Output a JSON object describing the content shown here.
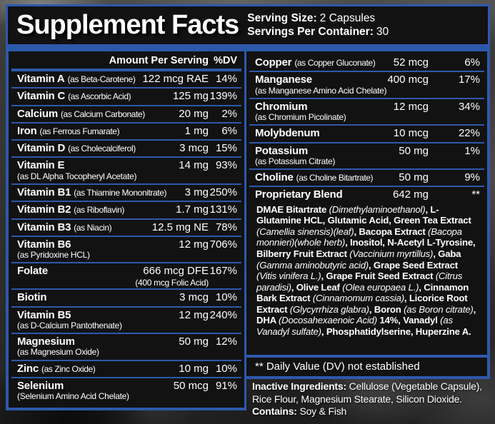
{
  "header": {
    "title": "Supplement Facts",
    "serving_size_label": "Serving Size:",
    "serving_size_value": "2 Capsules",
    "servings_label": "Servings Per Container:",
    "servings_value": "30"
  },
  "table": {
    "amount_header": "Amount Per Serving",
    "dv_header": "%DV",
    "left_rows": [
      {
        "name": "Vitamin A",
        "form": "(as Beta-Carotene)",
        "amount": "122 mcg RAE",
        "dv": "14%"
      },
      {
        "name": "Vitamin C",
        "form": "(as Ascorbic Acid)",
        "amount": "125 mg",
        "dv": "139%"
      },
      {
        "name": "Calcium",
        "form": "(as Calcium Carbonate)",
        "amount": "20 mg",
        "dv": "2%"
      },
      {
        "name": "Iron",
        "form": "(as Ferrous Fumarate)",
        "amount": "1 mg",
        "dv": "6%"
      },
      {
        "name": "Vitamin D",
        "form": "(as Cholecalciferol)",
        "amount": "3 mcg",
        "dv": "15%"
      },
      {
        "name": "Vitamin E",
        "sub": "(as DL Alpha Tocopheryl Acetate)",
        "amount": "14 mg",
        "dv": "93%"
      },
      {
        "name": "Vitamin B1",
        "form": "(as Thiamine Mononitrate)",
        "amount": "3 mg",
        "dv": "250%"
      },
      {
        "name": "Vitamin B2",
        "form": "(as Riboflavin)",
        "amount": "1.7 mg",
        "dv": "131%"
      },
      {
        "name": "Vitamin B3",
        "form": "(as Niacin)",
        "amount": "12.5 mg NE",
        "dv": "78%"
      },
      {
        "name": "Vitamin B6",
        "sub": "(as Pyridoxine HCL)",
        "amount": "12 mg",
        "dv": "706%"
      },
      {
        "name": "Folate",
        "amount": "666 mcg DFE",
        "amount_sub": "(400 mcg Folic Acid)",
        "dv": "167%"
      },
      {
        "name": "Biotin",
        "amount": "3 mcg",
        "dv": "10%"
      },
      {
        "name": "Vitamin B5",
        "sub": "(as D-Calcium Pantothenate)",
        "amount": "12 mg",
        "dv": "240%"
      },
      {
        "name": "Magnesium",
        "sub": "(as Magnesium Oxide)",
        "amount": "50 mg",
        "dv": "12%"
      },
      {
        "name": "Zinc",
        "form": "(as Zinc Oxide)",
        "amount": "10 mg",
        "dv": "10%"
      },
      {
        "name": "Selenium",
        "sub": "(Selenium Amino Acid Chelate)",
        "amount": "50 mcg",
        "dv": "91%"
      }
    ],
    "right_rows": [
      {
        "name": "Copper",
        "form": "(as Copper Gluconate)",
        "amount": "52 mcg",
        "dv": "6%"
      },
      {
        "name": "Manganese",
        "sub": "(as Manganese Amino Acid Chelate)",
        "amount": "400 mcg",
        "dv": "17%"
      },
      {
        "name": "Chromium",
        "sub": "(as Chromium Picolinate)",
        "amount": "12 mcg",
        "dv": "34%"
      },
      {
        "name": "Molybdenum",
        "amount": "10 mcg",
        "dv": "22%"
      },
      {
        "name": "Potassium",
        "sub": "(as Potassium Citrate)",
        "amount": "50 mg",
        "dv": "1%"
      },
      {
        "name": "Choline",
        "form": "(as Choline Bitartrate)",
        "amount": "50 mg",
        "dv": "9%"
      },
      {
        "name": "Proprietary Blend",
        "amount": "642 mg",
        "dv": "**"
      }
    ],
    "blend_description": [
      {
        "text": "DMAE Bitartrate ",
        "style": "b"
      },
      {
        "text": "(Dimethylaminoethanol)",
        "style": "i"
      },
      {
        "text": ", L-Glutamine HCL, Glutamic Acid, Green Tea Extract ",
        "style": "b"
      },
      {
        "text": "(Camellia sinensis)(leaf)",
        "style": "i"
      },
      {
        "text": ", Bacopa Extract ",
        "style": "b"
      },
      {
        "text": "(Bacopa monnieri)(whole herb)",
        "style": "i"
      },
      {
        "text": ", Inositol, N-Acetyl L-Tyrosine, Bilberry Fruit Extract ",
        "style": "b"
      },
      {
        "text": "(Vaccinium myrtillus)",
        "style": "i"
      },
      {
        "text": ", Gaba ",
        "style": "b"
      },
      {
        "text": "(Gamma aminobutyric acid)",
        "style": "i"
      },
      {
        "text": ", Grape Seed Extract ",
        "style": "b"
      },
      {
        "text": "(Vitis vinifera L.)",
        "style": "i"
      },
      {
        "text": ", Grape Fruit Seed Extract ",
        "style": "b"
      },
      {
        "text": "(Citrus paradisi)",
        "style": "i"
      },
      {
        "text": ", Olive Leaf ",
        "style": "b"
      },
      {
        "text": "(Olea europaea L.)",
        "style": "i"
      },
      {
        "text": ", Cinnamon Bark Extract ",
        "style": "b"
      },
      {
        "text": "(Cinnamomum cassia)",
        "style": "i"
      },
      {
        "text": ", Licorice Root Extract ",
        "style": "b"
      },
      {
        "text": "(Glycyrrhiza glabra)",
        "style": "i"
      },
      {
        "text": ", Boron ",
        "style": "b"
      },
      {
        "text": "(as Boron citrate)",
        "style": "i"
      },
      {
        "text": ", DHA ",
        "style": "b"
      },
      {
        "text": "(Docosahexaenoic Acid)",
        "style": "i"
      },
      {
        "text": " 14%, Vanadyl ",
        "style": "b"
      },
      {
        "text": "(as Vanadyl sulfate)",
        "style": "i"
      },
      {
        "text": ", Phosphatidylserine, Huperzine A.",
        "style": "b"
      }
    ],
    "dv_footnote": "** Daily Value (DV) not established"
  },
  "footer": {
    "inactive_label": "Inactive Ingredients:",
    "inactive_text": " Cellulose (Vegetable Capsule), Rice Flour, Magnesium Stearate, Silicon Dioxide.",
    "contains_label": "Contains:",
    "contains_text": " Soy & Fish"
  },
  "colors": {
    "accent_blue": "#2d59ab",
    "panel_black": "#121212",
    "text_white": "#ffffff"
  }
}
